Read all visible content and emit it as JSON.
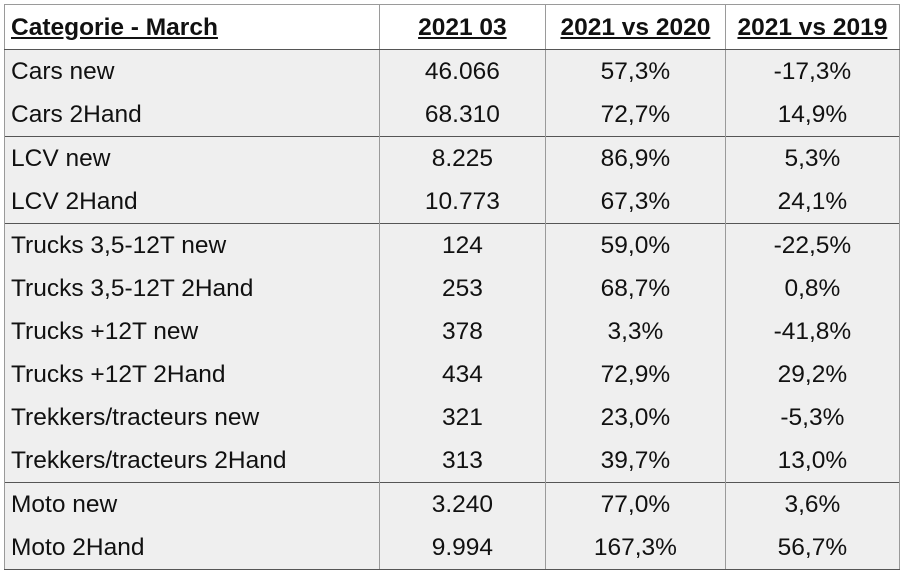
{
  "table": {
    "headers": [
      "Categorie - March",
      "2021 03",
      "2021 vs 2020",
      "2021 vs 2019"
    ],
    "rows": [
      {
        "label": "Cars new",
        "v2021": "46.066",
        "vs2020": "57,3%",
        "vs2019": "-17,3%"
      },
      {
        "label": "Cars 2Hand",
        "v2021": "68.310",
        "vs2020": "72,7%",
        "vs2019": "14,9%"
      },
      {
        "label": "LCV new",
        "v2021": "8.225",
        "vs2020": "86,9%",
        "vs2019": "5,3%"
      },
      {
        "label": "LCV 2Hand",
        "v2021": "10.773",
        "vs2020": "67,3%",
        "vs2019": "24,1%"
      },
      {
        "label": "Trucks 3,5-12T new",
        "v2021": "124",
        "vs2020": "59,0%",
        "vs2019": "-22,5%"
      },
      {
        "label": "Trucks 3,5-12T 2Hand",
        "v2021": "253",
        "vs2020": "68,7%",
        "vs2019": "0,8%"
      },
      {
        "label": "Trucks +12T new",
        "v2021": "378",
        "vs2020": "3,3%",
        "vs2019": "-41,8%"
      },
      {
        "label": "Trucks +12T 2Hand",
        "v2021": "434",
        "vs2020": "72,9%",
        "vs2019": "29,2%"
      },
      {
        "label": "Trekkers/tracteurs new",
        "v2021": "321",
        "vs2020": "23,0%",
        "vs2019": "-5,3%"
      },
      {
        "label": "Trekkers/tracteurs 2Hand",
        "v2021": "313",
        "vs2020": "39,7%",
        "vs2019": "13,0%"
      },
      {
        "label": "Moto new",
        "v2021": "3.240",
        "vs2020": "77,0%",
        "vs2019": "3,6%"
      },
      {
        "label": "Moto 2Hand",
        "v2021": "9.994",
        "vs2020": "167,3%",
        "vs2019": "56,7%"
      }
    ]
  }
}
